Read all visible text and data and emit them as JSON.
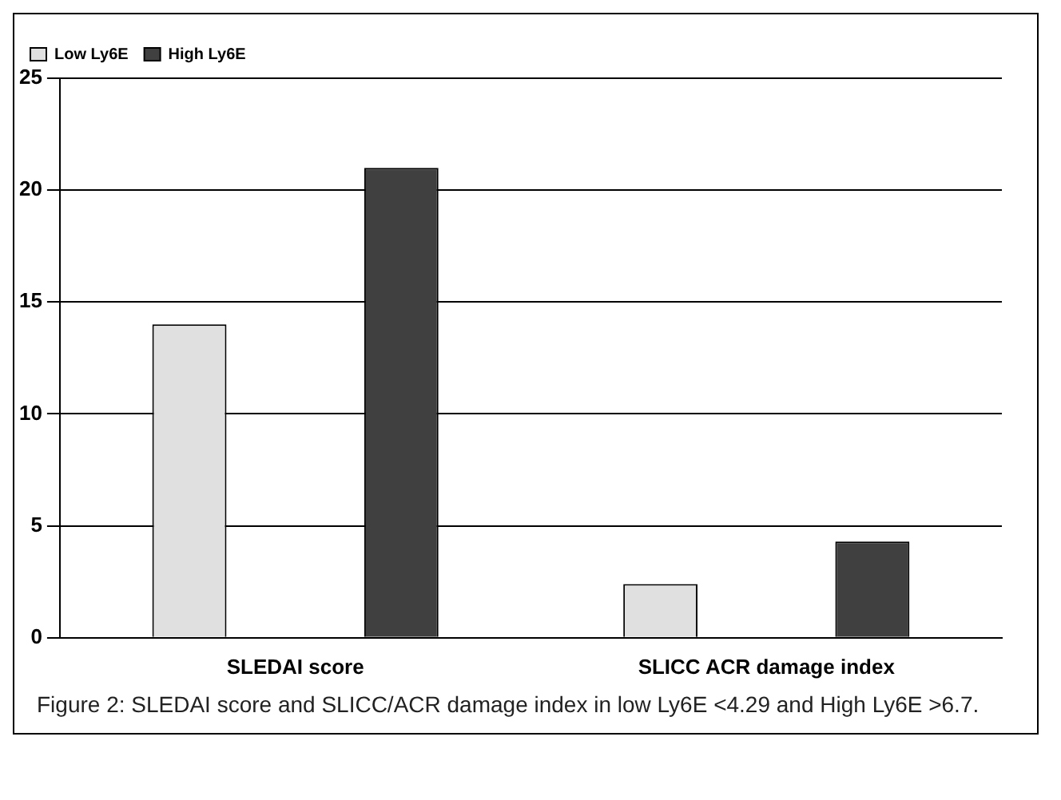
{
  "chart_data": {
    "type": "bar",
    "categories": [
      "SLEDAI score",
      "SLICC ACR damage index"
    ],
    "series": [
      {
        "name": "Low Ly6E",
        "color": "#e0e0e0",
        "values": [
          14,
          2.4
        ]
      },
      {
        "name": "High Ly6E",
        "color": "#404040",
        "values": [
          21,
          4.3
        ]
      }
    ],
    "ylim": [
      0,
      25
    ],
    "yticks": [
      0,
      5,
      10,
      15,
      20,
      25
    ],
    "grid": "y",
    "legend": "top left",
    "annotations": [
      "Figure 2: SLEDAI score and SLICC/ACR damage index in low Ly6E <4.29 and High Ly6E >6.7."
    ]
  }
}
